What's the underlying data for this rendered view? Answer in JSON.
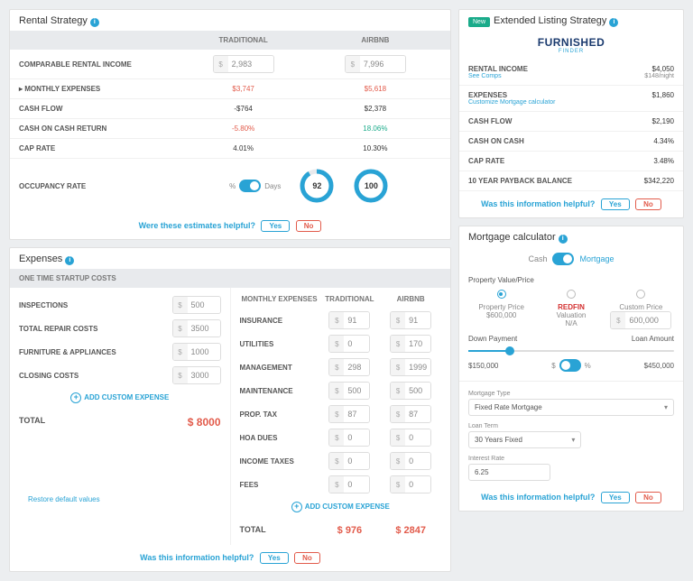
{
  "rental_strategy": {
    "title": "Rental Strategy",
    "head_traditional": "TRADITIONAL",
    "head_airbnb": "AIRBNB",
    "rows": [
      {
        "label": "COMPARABLE RENTAL INCOME",
        "t": "2,983",
        "a": "7,996",
        "input": true
      },
      {
        "label": "▸ MONTHLY EXPENSES",
        "t": "$3,747",
        "a": "$5,618",
        "tcls": "red",
        "acls": "red"
      },
      {
        "label": "CASH FLOW",
        "t": "-$764",
        "a": "$2,378"
      },
      {
        "label": "CASH ON CASH RETURN",
        "t": "-5.80%",
        "a": "18.06%",
        "tcls": "red",
        "acls": "green"
      },
      {
        "label": "CAP RATE",
        "t": "4.01%",
        "a": "10.30%"
      }
    ],
    "occ_label": "OCCUPANCY RATE",
    "toggle_pct": "%",
    "toggle_days": "Days",
    "donut_t": "92",
    "donut_a": "100",
    "feedback": "Were these estimates helpful?",
    "yes": "Yes",
    "no": "No"
  },
  "extended": {
    "badge": "New",
    "title": "Extended Listing Strategy",
    "logo1": "FURNISHED",
    "logo2": "FINDER",
    "rows": [
      {
        "l": "RENTAL INCOME",
        "sub": "See Comps",
        "r": "$4,050",
        "rsmall": "$148/night"
      },
      {
        "l": "EXPENSES",
        "sub": "Customize   Mortgage calculator",
        "r": "$1,860"
      },
      {
        "l": "CASH FLOW",
        "r": "$2,190"
      },
      {
        "l": "CASH ON CASH",
        "r": "4.34%",
        "rcls": "green"
      },
      {
        "l": "CAP RATE",
        "r": "3.48%"
      },
      {
        "l": "10 YEAR PAYBACK BALANCE",
        "r": "$342,220"
      }
    ],
    "feedback": "Was this information helpful?",
    "yes": "Yes",
    "no": "No"
  },
  "expenses": {
    "title": "Expenses",
    "startup_head": "ONE TIME STARTUP COSTS",
    "startup": [
      {
        "label": "INSPECTIONS",
        "v": "500"
      },
      {
        "label": "TOTAL REPAIR COSTS",
        "v": "3500"
      },
      {
        "label": "FURNITURE & APPLIANCES",
        "v": "1000"
      },
      {
        "label": "CLOSING COSTS",
        "v": "3000"
      }
    ],
    "add": "ADD CUSTOM EXPENSE",
    "total_label": "TOTAL",
    "total_val": "$ 8000",
    "monthly_head": "MONTHLY EXPENSES",
    "trad": "TRADITIONAL",
    "air": "AIRBNB",
    "monthly": [
      {
        "label": "INSURANCE",
        "t": "91",
        "a": "91"
      },
      {
        "label": "UTILITIES",
        "t": "0",
        "a": "170"
      },
      {
        "label": "MANAGEMENT",
        "t": "298",
        "a": "1999"
      },
      {
        "label": "MAINTENANCE",
        "t": "500",
        "a": "500"
      },
      {
        "label": "PROP. TAX",
        "t": "87",
        "a": "87"
      },
      {
        "label": "HOA DUES",
        "t": "0",
        "a": "0"
      },
      {
        "label": "INCOME TAXES",
        "t": "0",
        "a": "0"
      },
      {
        "label": "FEES",
        "t": "0",
        "a": "0"
      }
    ],
    "mtotal_t": "$ 976",
    "mtotal_a": "$ 2847",
    "restore": "Restore default values",
    "feedback": "Was this information helpful?",
    "yes": "Yes",
    "no": "No"
  },
  "mortgage": {
    "title": "Mortgage calculator",
    "cash": "Cash",
    "mortgage": "Mortgage",
    "pvp_label": "Property Value/Price",
    "opts": [
      {
        "label": "Property Price",
        "val": "$600,000",
        "on": true
      },
      {
        "label": "Valuation",
        "val": "N/A",
        "redfin": true
      },
      {
        "label": "Custom Price",
        "val": "600,000",
        "input": true
      }
    ],
    "dp_label": "Down Payment",
    "loan_label": "Loan Amount",
    "dp_val": "$150,000",
    "loan_val": "$450,000",
    "dp_toggle_s": "$",
    "dp_toggle_p": "%",
    "mtype_label": "Mortgage Type",
    "mtype_val": "Fixed Rate Mortgage",
    "term_label": "Loan Term",
    "term_val": "30 Years Fixed",
    "rate_label": "Interest Rate",
    "rate_val": "6.25",
    "feedback": "Was this information helpful?",
    "yes": "Yes",
    "no": "No"
  }
}
